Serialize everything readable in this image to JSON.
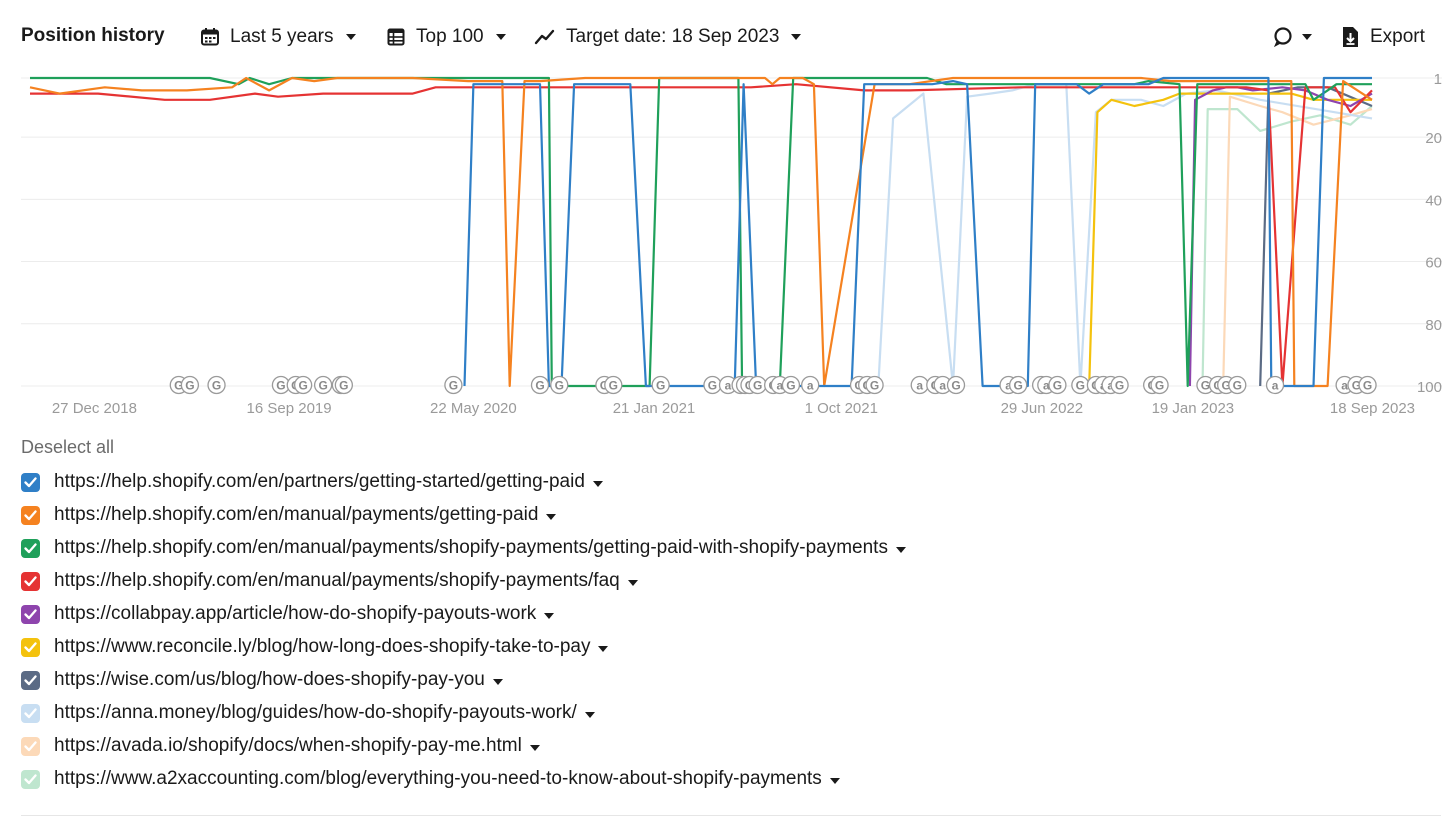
{
  "toolbar": {
    "title": "Position history",
    "period": "Last 5 years",
    "top": "Top 100",
    "target_date": "Target date: 18 Sep 2023",
    "export": "Export"
  },
  "legend": {
    "deselect_all": "Deselect all",
    "items": [
      {
        "url": "https://help.shopify.com/en/partners/getting-started/getting-paid",
        "color": "#2f7fc7"
      },
      {
        "url": "https://help.shopify.com/en/manual/payments/getting-paid",
        "color": "#f58220"
      },
      {
        "url": "https://help.shopify.com/en/manual/payments/shopify-payments/getting-paid-with-shopify-payments",
        "color": "#1fa05a"
      },
      {
        "url": "https://help.shopify.com/en/manual/payments/shopify-payments/faq",
        "color": "#e53333"
      },
      {
        "url": "https://collabpay.app/article/how-do-shopify-payouts-work",
        "color": "#8e44ad"
      },
      {
        "url": "https://www.reconcile.ly/blog/how-long-does-shopify-take-to-pay",
        "color": "#f4c20d"
      },
      {
        "url": "https://wise.com/us/blog/how-does-shopify-pay-you",
        "color": "#5b6b85"
      },
      {
        "url": "https://anna.money/blog/guides/how-do-shopify-payouts-work/",
        "color": "#c8def2"
      },
      {
        "url": "https://avada.io/shopify/docs/when-shopify-pay-me.html",
        "color": "#fcd9b8"
      },
      {
        "url": "https://www.a2xaccounting.com/blog/everything-you-need-to-know-about-shopify-payments",
        "color": "#bfe6cf"
      }
    ]
  },
  "chart_data": {
    "type": "line",
    "x_range": [
      "2018-10-01",
      "2023-09-18"
    ],
    "y_range": [
      1,
      100
    ],
    "y_reversed": true,
    "y_ticks": [
      "1",
      "20",
      "40",
      "60",
      "80",
      "100"
    ],
    "x_ticks": [
      {
        "label": "27 Dec 2018",
        "date": "2018-12-27"
      },
      {
        "label": "16 Sep 2019",
        "date": "2019-09-16"
      },
      {
        "label": "22 May 2020",
        "date": "2020-05-22"
      },
      {
        "label": "21 Jan 2021",
        "date": "2021-01-21"
      },
      {
        "label": "1 Oct 2021",
        "date": "2021-10-01"
      },
      {
        "label": "29 Jun 2022",
        "date": "2022-06-29"
      },
      {
        "label": "19 Jan 2023",
        "date": "2023-01-19"
      },
      {
        "label": "18 Sep 2023",
        "date": "2023-09-18"
      }
    ],
    "annotations": [
      {
        "date": "2019-04-20",
        "label": "G"
      },
      {
        "date": "2019-05-05",
        "label": "G"
      },
      {
        "date": "2019-06-10",
        "label": "G"
      },
      {
        "date": "2019-09-05",
        "label": "G"
      },
      {
        "date": "2019-09-25",
        "label": "G"
      },
      {
        "date": "2019-10-05",
        "label": "G"
      },
      {
        "date": "2019-11-01",
        "label": "G"
      },
      {
        "date": "2019-11-25",
        "label": "G"
      },
      {
        "date": "2019-11-29",
        "label": "G"
      },
      {
        "date": "2020-04-25",
        "label": "G"
      },
      {
        "date": "2020-08-20",
        "label": "G"
      },
      {
        "date": "2020-09-15",
        "label": "G"
      },
      {
        "date": "2020-11-15",
        "label": "G"
      },
      {
        "date": "2020-11-27",
        "label": "G"
      },
      {
        "date": "2021-01-30",
        "label": "G"
      },
      {
        "date": "2021-04-10",
        "label": "G"
      },
      {
        "date": "2021-05-01",
        "label": "a"
      },
      {
        "date": "2021-05-18",
        "label": "G"
      },
      {
        "date": "2021-05-24",
        "label": "G"
      },
      {
        "date": "2021-05-30",
        "label": "G"
      },
      {
        "date": "2021-06-10",
        "label": "G"
      },
      {
        "date": "2021-07-01",
        "label": "G"
      },
      {
        "date": "2021-07-10",
        "label": "a"
      },
      {
        "date": "2021-07-25",
        "label": "G"
      },
      {
        "date": "2021-08-20",
        "label": "a"
      },
      {
        "date": "2021-10-25",
        "label": "G"
      },
      {
        "date": "2021-11-05",
        "label": "G"
      },
      {
        "date": "2021-11-15",
        "label": "G"
      },
      {
        "date": "2022-01-15",
        "label": "a"
      },
      {
        "date": "2022-02-05",
        "label": "G"
      },
      {
        "date": "2022-02-15",
        "label": "a"
      },
      {
        "date": "2022-03-05",
        "label": "G"
      },
      {
        "date": "2022-05-15",
        "label": "a"
      },
      {
        "date": "2022-05-28",
        "label": "G"
      },
      {
        "date": "2022-06-28",
        "label": "a"
      },
      {
        "date": "2022-07-05",
        "label": "a"
      },
      {
        "date": "2022-07-20",
        "label": "G"
      },
      {
        "date": "2022-08-20",
        "label": "G"
      },
      {
        "date": "2022-09-10",
        "label": "G"
      },
      {
        "date": "2022-09-20",
        "label": "a"
      },
      {
        "date": "2022-09-30",
        "label": "a"
      },
      {
        "date": "2022-10-12",
        "label": "G"
      },
      {
        "date": "2022-11-25",
        "label": "G"
      },
      {
        "date": "2022-12-05",
        "label": "G"
      },
      {
        "date": "2023-02-05",
        "label": "G"
      },
      {
        "date": "2023-02-22",
        "label": "G"
      },
      {
        "date": "2023-03-05",
        "label": "G"
      },
      {
        "date": "2023-03-20",
        "label": "G"
      },
      {
        "date": "2023-05-10",
        "label": "a"
      },
      {
        "date": "2023-08-12",
        "label": "a"
      },
      {
        "date": "2023-08-28",
        "label": "G"
      },
      {
        "date": "2023-09-12",
        "label": "G"
      }
    ],
    "series": [
      {
        "color": "#2f7fc7",
        "points": [
          [
            "2020-05-10",
            100
          ],
          [
            "2020-05-22",
            3
          ],
          [
            "2020-08-20",
            3
          ],
          [
            "2020-09-01",
            100
          ],
          [
            "2020-09-18",
            100
          ],
          [
            "2020-10-05",
            3
          ],
          [
            "2020-12-20",
            3
          ],
          [
            "2021-01-10",
            100
          ],
          [
            "2021-05-10",
            100
          ],
          [
            "2021-05-22",
            3
          ],
          [
            "2021-06-08",
            100
          ],
          [
            "2021-10-15",
            100
          ],
          [
            "2021-11-01",
            3
          ],
          [
            "2022-02-01",
            3
          ],
          [
            "2022-03-01",
            2
          ],
          [
            "2022-03-20",
            3
          ],
          [
            "2022-04-10",
            100
          ],
          [
            "2022-06-10",
            100
          ],
          [
            "2022-06-20",
            3
          ],
          [
            "2022-08-15",
            3
          ],
          [
            "2022-09-01",
            6
          ],
          [
            "2022-09-20",
            3
          ],
          [
            "2022-11-20",
            3
          ],
          [
            "2022-12-10",
            1
          ],
          [
            "2023-05-01",
            1
          ],
          [
            "2023-05-05",
            100
          ],
          [
            "2023-07-01",
            100
          ],
          [
            "2023-07-15",
            1
          ],
          [
            "2023-09-18",
            1
          ]
        ]
      },
      {
        "color": "#f58220",
        "points": [
          [
            "2018-10-01",
            4
          ],
          [
            "2018-11-10",
            6
          ],
          [
            "2019-01-10",
            4
          ],
          [
            "2019-03-01",
            5
          ],
          [
            "2019-05-01",
            5
          ],
          [
            "2019-07-01",
            4
          ],
          [
            "2019-07-20",
            1
          ],
          [
            "2019-08-20",
            5
          ],
          [
            "2019-09-20",
            1
          ],
          [
            "2019-10-20",
            2
          ],
          [
            "2019-11-20",
            1
          ],
          [
            "2020-03-01",
            1
          ],
          [
            "2020-05-15",
            2
          ],
          [
            "2020-06-30",
            2
          ],
          [
            "2020-07-10",
            100
          ],
          [
            "2020-07-30",
            2
          ],
          [
            "2020-08-20",
            2
          ],
          [
            "2020-10-20",
            1
          ],
          [
            "2021-01-20",
            1
          ],
          [
            "2021-06-20",
            1
          ],
          [
            "2021-06-30",
            3
          ],
          [
            "2021-07-10",
            1
          ],
          [
            "2021-08-10",
            1
          ],
          [
            "2021-08-25",
            3
          ],
          [
            "2021-09-08",
            100
          ],
          [
            "2021-11-15",
            3
          ],
          [
            "2022-01-01",
            3
          ],
          [
            "2022-03-01",
            1
          ],
          [
            "2022-11-10",
            1
          ],
          [
            "2022-12-20",
            2
          ],
          [
            "2023-06-01",
            2
          ],
          [
            "2023-06-05",
            100
          ],
          [
            "2023-07-20",
            100
          ],
          [
            "2023-08-10",
            2
          ],
          [
            "2023-09-18",
            8
          ]
        ]
      },
      {
        "color": "#1fa05a",
        "points": [
          [
            "2018-10-01",
            1
          ],
          [
            "2019-06-01",
            1
          ],
          [
            "2019-07-10",
            3
          ],
          [
            "2019-07-25",
            1
          ],
          [
            "2019-08-20",
            3
          ],
          [
            "2019-09-20",
            1
          ],
          [
            "2020-09-01",
            1
          ],
          [
            "2020-09-05",
            100
          ],
          [
            "2020-09-20",
            100
          ],
          [
            "2021-01-15",
            100
          ],
          [
            "2021-01-28",
            1
          ],
          [
            "2021-05-15",
            1
          ],
          [
            "2021-05-20",
            100
          ],
          [
            "2021-07-10",
            100
          ],
          [
            "2021-07-28",
            1
          ],
          [
            "2022-01-25",
            1
          ],
          [
            "2022-02-20",
            3
          ],
          [
            "2022-11-01",
            3
          ],
          [
            "2022-11-20",
            2
          ],
          [
            "2023-01-01",
            3
          ],
          [
            "2023-01-12",
            100
          ],
          [
            "2023-01-25",
            3
          ],
          [
            "2023-06-20",
            3
          ],
          [
            "2023-07-01",
            8
          ],
          [
            "2023-07-20",
            5
          ],
          [
            "2023-08-01",
            3
          ],
          [
            "2023-09-18",
            3
          ]
        ]
      },
      {
        "color": "#e53333",
        "points": [
          [
            "2018-10-01",
            6
          ],
          [
            "2019-01-01",
            6
          ],
          [
            "2019-04-01",
            8
          ],
          [
            "2019-06-01",
            8
          ],
          [
            "2019-08-01",
            6
          ],
          [
            "2019-09-01",
            7
          ],
          [
            "2019-11-01",
            6
          ],
          [
            "2020-03-01",
            6
          ],
          [
            "2020-04-01",
            4
          ],
          [
            "2020-08-20",
            4
          ],
          [
            "2021-06-01",
            4
          ],
          [
            "2021-08-01",
            3
          ],
          [
            "2021-11-01",
            5
          ],
          [
            "2022-01-01",
            5
          ],
          [
            "2022-06-01",
            4
          ],
          [
            "2023-01-01",
            4
          ],
          [
            "2023-04-01",
            4
          ],
          [
            "2023-05-01",
            5
          ],
          [
            "2023-05-20",
            100
          ],
          [
            "2023-06-20",
            4
          ],
          [
            "2023-07-30",
            4
          ],
          [
            "2023-08-20",
            12
          ],
          [
            "2023-09-18",
            5
          ]
        ]
      },
      {
        "color": "#8e44ad",
        "points": [
          [
            "2023-01-15",
            100
          ],
          [
            "2023-01-22",
            8
          ],
          [
            "2023-02-15",
            5
          ],
          [
            "2023-03-05",
            4
          ],
          [
            "2023-03-20",
            4
          ],
          [
            "2023-04-10",
            5
          ],
          [
            "2023-05-20",
            4
          ],
          [
            "2023-06-20",
            5
          ],
          [
            "2023-07-20",
            8
          ],
          [
            "2023-08-20",
            10
          ],
          [
            "2023-09-18",
            6
          ]
        ]
      },
      {
        "color": "#f4c20d",
        "points": [
          [
            "2022-09-01",
            100
          ],
          [
            "2022-09-12",
            12
          ],
          [
            "2022-10-01",
            8
          ],
          [
            "2022-11-01",
            10
          ],
          [
            "2022-12-10",
            8
          ],
          [
            "2023-01-01",
            6
          ],
          [
            "2023-02-01",
            6
          ],
          [
            "2023-06-01",
            6
          ],
          [
            "2023-07-01",
            8
          ],
          [
            "2023-09-18",
            8
          ]
        ]
      },
      {
        "color": "#5b6b85",
        "points": [
          [
            "2023-04-20",
            100
          ],
          [
            "2023-05-01",
            6
          ],
          [
            "2023-06-10",
            4
          ],
          [
            "2023-07-20",
            4
          ],
          [
            "2023-09-18",
            10
          ]
        ]
      },
      {
        "color": "#c8def2",
        "points": [
          [
            "2021-11-20",
            100
          ],
          [
            "2021-12-10",
            14
          ],
          [
            "2022-01-20",
            6
          ],
          [
            "2022-03-01",
            100
          ],
          [
            "2022-03-20",
            7
          ],
          [
            "2022-04-20",
            6
          ],
          [
            "2022-05-20",
            5
          ],
          [
            "2022-06-20",
            3
          ],
          [
            "2022-08-01",
            3
          ],
          [
            "2022-08-20",
            100
          ],
          [
            "2022-09-10",
            12
          ],
          [
            "2022-10-01",
            8
          ],
          [
            "2022-11-10",
            8
          ],
          [
            "2022-12-10",
            10
          ],
          [
            "2023-01-10",
            6
          ],
          [
            "2023-02-20",
            5
          ],
          [
            "2023-04-20",
            8
          ],
          [
            "2023-09-18",
            14
          ]
        ]
      },
      {
        "color": "#fcd9b8",
        "points": [
          [
            "2023-03-01",
            100
          ],
          [
            "2023-03-10",
            7
          ],
          [
            "2023-04-20",
            10
          ],
          [
            "2023-05-20",
            12
          ],
          [
            "2023-07-01",
            16
          ],
          [
            "2023-08-20",
            13
          ],
          [
            "2023-09-18",
            11
          ]
        ]
      },
      {
        "color": "#bfe6cf",
        "points": [
          [
            "2023-02-01",
            100
          ],
          [
            "2023-02-08",
            11
          ],
          [
            "2023-03-20",
            11
          ],
          [
            "2023-04-20",
            18
          ],
          [
            "2023-06-01",
            15
          ],
          [
            "2023-07-10",
            13
          ],
          [
            "2023-08-20",
            16
          ],
          [
            "2023-09-18",
            10
          ]
        ]
      }
    ]
  }
}
